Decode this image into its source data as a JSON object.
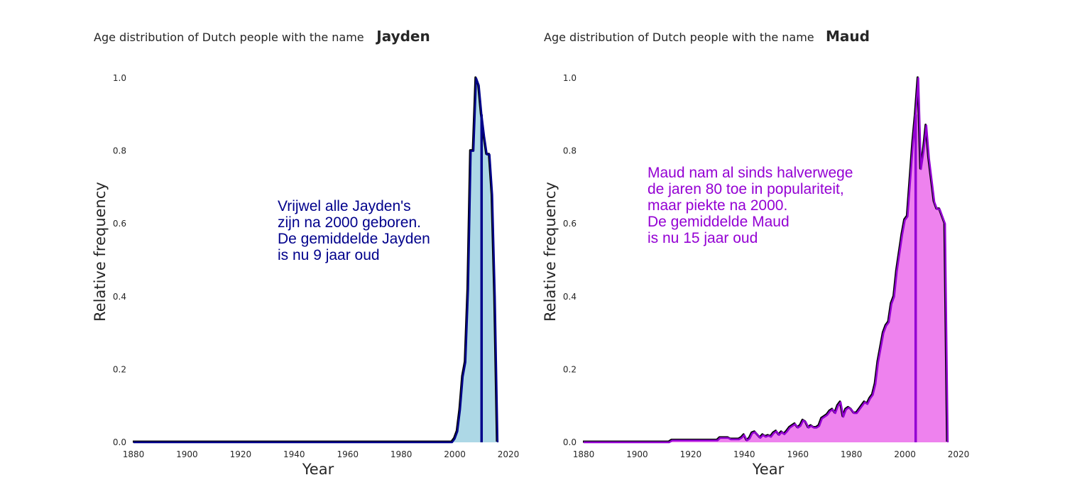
{
  "chart_data": [
    {
      "type": "area",
      "title_prefix": "Age distribution of Dutch people with the name",
      "name": "Jayden",
      "xlabel": "Year",
      "ylabel": "Relative frequency",
      "xlim": [
        1880,
        2020
      ],
      "ylim": [
        0,
        1
      ],
      "x_ticks": [
        "1880",
        "1900",
        "1920",
        "1940",
        "1960",
        "1980",
        "2000",
        "2020"
      ],
      "y_ticks": [
        "0.0",
        "0.2",
        "0.4",
        "0.6",
        "0.8",
        "1.0"
      ],
      "grid": false,
      "line_color": "#00008b",
      "fill_color": "#add8e6",
      "mean_year": 2010,
      "annotation": [
        "Vrijwel alle Jayden's",
        "zijn na 2000 geboren.",
        "De gemiddelde Jayden",
        "is nu 9 jaar oud"
      ],
      "annotation_color": "#00008b",
      "x": [
        1880,
        1999,
        2000,
        2001,
        2002,
        2003,
        2004,
        2005,
        2006,
        2007,
        2008,
        2009,
        2010,
        2011,
        2012,
        2013,
        2014,
        2015,
        2016
      ],
      "y": [
        0,
        0,
        0.01,
        0.03,
        0.09,
        0.18,
        0.22,
        0.42,
        0.8,
        0.8,
        1.0,
        0.98,
        0.9,
        0.84,
        0.79,
        0.79,
        0.68,
        0.4,
        0.0
      ]
    },
    {
      "type": "area",
      "title_prefix": "Age distribution of Dutch people with the name",
      "name": "Maud",
      "xlabel": "Year",
      "ylabel": "Relative frequency",
      "xlim": [
        1880,
        2020
      ],
      "ylim": [
        0,
        1
      ],
      "x_ticks": [
        "1880",
        "1900",
        "1920",
        "1940",
        "1960",
        "1980",
        "2000",
        "2020"
      ],
      "y_ticks": [
        "0.0",
        "0.2",
        "0.4",
        "0.6",
        "0.8",
        "1.0"
      ],
      "grid": false,
      "line_color": "#9400d3",
      "fill_color": "#ee82ee",
      "mean_year": 2004,
      "annotation": [
        "Maud nam al sinds halverwege",
        "de jaren 80 toe in populariteit,",
        "maar piekte na 2000.",
        "",
        "De gemiddelde Maud",
        "is nu 15 jaar oud"
      ],
      "annotation_color": "#9400d3",
      "x": [
        1880,
        1912,
        1913,
        1930,
        1931,
        1934,
        1935,
        1938,
        1939,
        1940,
        1941,
        1942,
        1943,
        1944,
        1945,
        1946,
        1947,
        1948,
        1949,
        1950,
        1951,
        1952,
        1953,
        1954,
        1955,
        1956,
        1957,
        1958,
        1959,
        1960,
        1961,
        1962,
        1963,
        1964,
        1965,
        1966,
        1967,
        1968,
        1969,
        1970,
        1971,
        1972,
        1973,
        1974,
        1975,
        1976,
        1977,
        1978,
        1979,
        1980,
        1981,
        1982,
        1983,
        1984,
        1985,
        1986,
        1987,
        1988,
        1989,
        1990,
        1991,
        1992,
        1993,
        1994,
        1995,
        1996,
        1997,
        1998,
        1999,
        2000,
        2001,
        2002,
        2003,
        2004,
        2005,
        2006,
        2007,
        2008,
        2009,
        2010,
        2011,
        2012,
        2013,
        2014,
        2015,
        2016
      ],
      "y": [
        0,
        0,
        0.005,
        0.005,
        0.012,
        0.012,
        0.008,
        0.008,
        0.012,
        0.02,
        0.005,
        0.01,
        0.025,
        0.028,
        0.02,
        0.012,
        0.02,
        0.015,
        0.018,
        0.015,
        0.025,
        0.03,
        0.02,
        0.028,
        0.022,
        0.03,
        0.04,
        0.045,
        0.05,
        0.04,
        0.045,
        0.06,
        0.055,
        0.04,
        0.045,
        0.04,
        0.04,
        0.045,
        0.065,
        0.07,
        0.075,
        0.085,
        0.09,
        0.08,
        0.1,
        0.11,
        0.07,
        0.09,
        0.095,
        0.09,
        0.08,
        0.08,
        0.09,
        0.1,
        0.11,
        0.105,
        0.12,
        0.13,
        0.16,
        0.22,
        0.26,
        0.3,
        0.32,
        0.33,
        0.38,
        0.4,
        0.47,
        0.52,
        0.57,
        0.61,
        0.62,
        0.72,
        0.82,
        0.9,
        1.0,
        0.75,
        0.8,
        0.87,
        0.78,
        0.72,
        0.66,
        0.64,
        0.64,
        0.62,
        0.6,
        0.0
      ]
    }
  ]
}
